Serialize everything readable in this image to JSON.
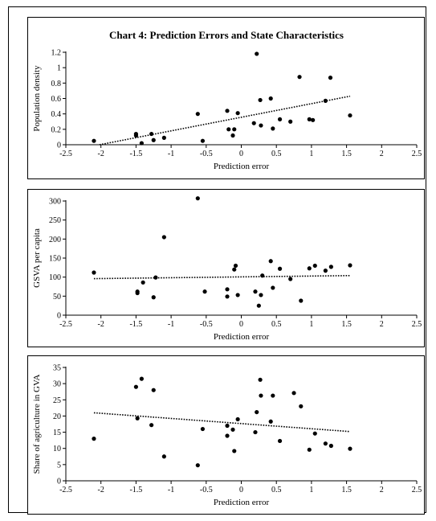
{
  "title": "Chart 4: Prediction Errors and State Characteristics",
  "chart_data": [
    {
      "type": "scatter",
      "xlabel": "Prediction error",
      "ylabel": "Population density",
      "xlim": [
        -2.5,
        2.5
      ],
      "ylim": [
        0,
        1.2
      ],
      "xticks": [
        "-2.5",
        "-2",
        "-1.5",
        "-1",
        "-0.5",
        "0",
        "0.5",
        "1",
        "1.5",
        "2",
        "2.5"
      ],
      "yticks": [
        "0",
        "0.2",
        "0.4",
        "0.6",
        "0.8",
        "1",
        "1.2"
      ],
      "trendline": {
        "style": "dotted",
        "from": [
          -2.02,
          0.0
        ],
        "to": [
          1.55,
          0.63
        ]
      },
      "points": [
        [
          -2.1,
          0.05
        ],
        [
          -1.5,
          0.14
        ],
        [
          -1.5,
          0.12
        ],
        [
          -1.42,
          0.02
        ],
        [
          -1.28,
          0.14
        ],
        [
          -1.25,
          0.06
        ],
        [
          -1.1,
          0.09
        ],
        [
          -0.62,
          0.4
        ],
        [
          -0.55,
          0.05
        ],
        [
          -0.2,
          0.44
        ],
        [
          -0.18,
          0.2
        ],
        [
          -0.12,
          0.12
        ],
        [
          -0.1,
          0.2
        ],
        [
          -0.05,
          0.41
        ],
        [
          0.18,
          0.28
        ],
        [
          0.22,
          1.18
        ],
        [
          0.27,
          0.58
        ],
        [
          0.28,
          0.25
        ],
        [
          0.42,
          0.6
        ],
        [
          0.45,
          0.21
        ],
        [
          0.55,
          0.33
        ],
        [
          0.7,
          0.3
        ],
        [
          0.83,
          0.88
        ],
        [
          0.97,
          0.33
        ],
        [
          1.02,
          0.32
        ],
        [
          1.2,
          0.57
        ],
        [
          1.27,
          0.87
        ],
        [
          1.55,
          0.38
        ]
      ]
    },
    {
      "type": "scatter",
      "xlabel": "Prediction error",
      "ylabel": "GSVA per capita",
      "xlim": [
        -2.5,
        2.5
      ],
      "ylim": [
        0,
        300
      ],
      "xticks": [
        "-2.5",
        "-2",
        "-1.5",
        "-1",
        "-0.5",
        "0",
        "0.5",
        "1",
        "1.5",
        "2",
        "2.5"
      ],
      "yticks": [
        "0",
        "50",
        "100",
        "150",
        "200",
        "250",
        "300"
      ],
      "trendline": {
        "style": "dotted",
        "from": [
          -2.1,
          96
        ],
        "to": [
          1.55,
          104
        ]
      },
      "points": [
        [
          -2.1,
          112
        ],
        [
          -1.48,
          62
        ],
        [
          -1.48,
          58
        ],
        [
          -1.4,
          86
        ],
        [
          -1.25,
          47
        ],
        [
          -1.22,
          99
        ],
        [
          -1.1,
          205
        ],
        [
          -0.62,
          307
        ],
        [
          -0.52,
          62
        ],
        [
          -0.2,
          68
        ],
        [
          -0.2,
          49
        ],
        [
          -0.1,
          120
        ],
        [
          -0.08,
          130
        ],
        [
          -0.05,
          53
        ],
        [
          0.2,
          62
        ],
        [
          0.25,
          25
        ],
        [
          0.28,
          53
        ],
        [
          0.3,
          104
        ],
        [
          0.42,
          142
        ],
        [
          0.45,
          72
        ],
        [
          0.55,
          122
        ],
        [
          0.7,
          95
        ],
        [
          0.85,
          38
        ],
        [
          0.97,
          123
        ],
        [
          1.05,
          130
        ],
        [
          1.2,
          117
        ],
        [
          1.28,
          127
        ],
        [
          1.55,
          131
        ]
      ]
    },
    {
      "type": "scatter",
      "xlabel": "Prediction error",
      "ylabel": "Share of agriculture in GVA",
      "xlim": [
        -2.5,
        2.5
      ],
      "ylim": [
        0,
        35
      ],
      "xticks": [
        "-2.5",
        "-2",
        "-1.5",
        "-1",
        "-0.5",
        "0",
        "0.5",
        "1",
        "1.5",
        "2",
        "2.5"
      ],
      "yticks": [
        "0",
        "5",
        "10",
        "15",
        "20",
        "25",
        "30",
        "35"
      ],
      "trendline": {
        "style": "dotted",
        "from": [
          -2.1,
          21
        ],
        "to": [
          1.55,
          15.2
        ]
      },
      "points": [
        [
          -2.1,
          13
        ],
        [
          -1.5,
          29
        ],
        [
          -1.48,
          19.3
        ],
        [
          -1.42,
          31.5
        ],
        [
          -1.28,
          17.2
        ],
        [
          -1.25,
          28
        ],
        [
          -1.1,
          7.5
        ],
        [
          -0.62,
          4.8
        ],
        [
          -0.55,
          16
        ],
        [
          -0.2,
          17
        ],
        [
          -0.2,
          13.9
        ],
        [
          -0.12,
          15.8
        ],
        [
          -0.1,
          9.2
        ],
        [
          -0.05,
          19
        ],
        [
          0.2,
          15
        ],
        [
          0.22,
          21.2
        ],
        [
          0.27,
          31.2
        ],
        [
          0.28,
          26.3
        ],
        [
          0.42,
          18.3
        ],
        [
          0.45,
          26.3
        ],
        [
          0.55,
          12.3
        ],
        [
          0.75,
          27.1
        ],
        [
          0.85,
          23
        ],
        [
          0.97,
          9.6
        ],
        [
          1.05,
          14.6
        ],
        [
          1.2,
          11.5
        ],
        [
          1.28,
          10.8
        ],
        [
          1.55,
          9.9
        ]
      ]
    }
  ]
}
